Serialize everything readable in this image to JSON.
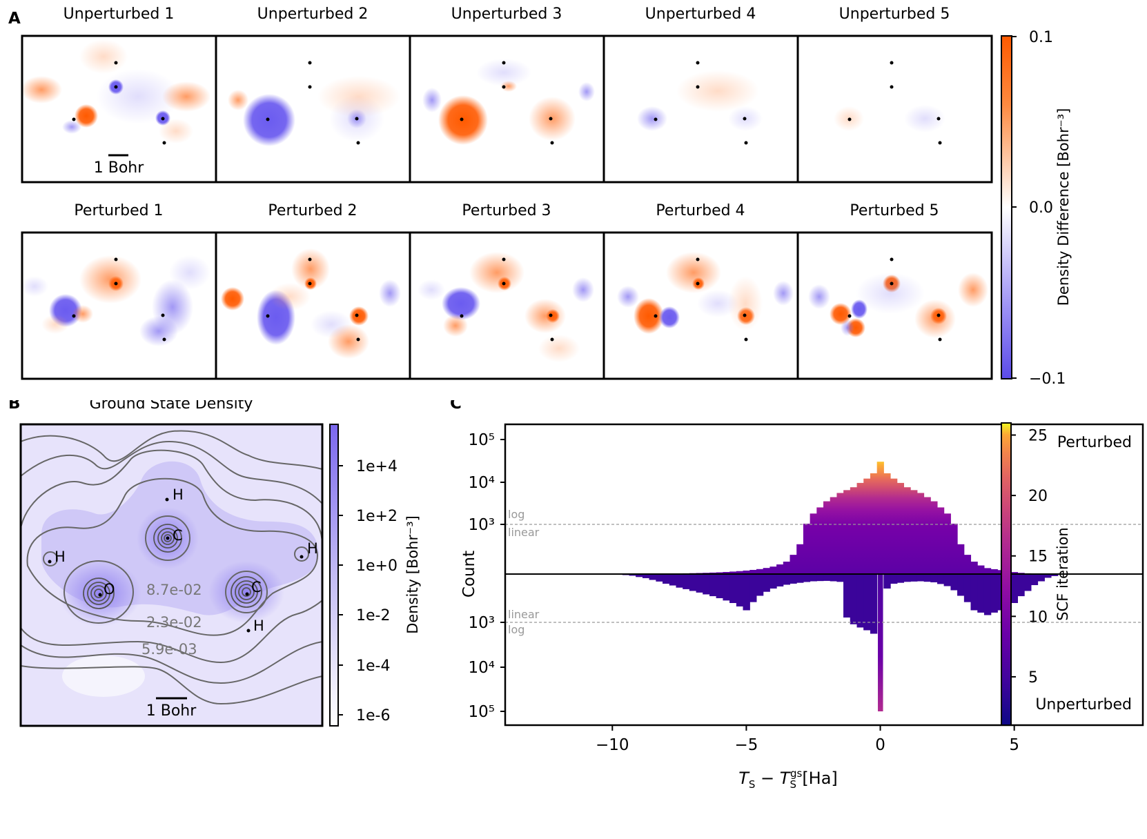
{
  "panel_labels": {
    "a": "A",
    "b": "B",
    "c": "C"
  },
  "panel_a": {
    "unperturbed_titles": [
      "Unperturbed 1",
      "Unperturbed 2",
      "Unperturbed 3",
      "Unperturbed 4",
      "Unperturbed 5"
    ],
    "perturbed_titles": [
      "Perturbed 1",
      "Perturbed 2",
      "Perturbed 3",
      "Perturbed 4",
      "Perturbed 5"
    ],
    "scalebar_label": "1 Bohr",
    "colorbar": {
      "label": "Density Difference [Bohr⁻³]",
      "ticks": [
        "0.1",
        "0.0",
        "−0.1"
      ],
      "min": -0.1,
      "max": 0.1,
      "colors": {
        "positive": "#ff6a1a",
        "negative": "#6b5cf0",
        "zero": "#ffffff"
      }
    }
  },
  "panel_b": {
    "title": "Ground State Density",
    "atoms": [
      {
        "label": "H"
      },
      {
        "label": "C"
      },
      {
        "label": "H"
      },
      {
        "label": "H"
      },
      {
        "label": "O"
      },
      {
        "label": "C"
      },
      {
        "label": "H"
      }
    ],
    "contour_labels": [
      "8.7e-02",
      "2.3e-02",
      "5.9e-03"
    ],
    "scalebar_label": "1 Bohr",
    "colorbar": {
      "label": "Density [Bohr⁻³]",
      "ticks": [
        "1e+4",
        "1e+2",
        "1e+0",
        "1e-2",
        "1e-4",
        "1e-6"
      ]
    }
  },
  "chart_data": {
    "type": "bar",
    "title": "",
    "xlabel": "T_S − T_S^gs [Ha]",
    "ylabel": "Count",
    "xlim": [
      -14,
      9.8
    ],
    "xticks": [
      "−10",
      "−5",
      "0",
      "5"
    ],
    "xtick_values": [
      -10,
      -5,
      0,
      5
    ],
    "ytick_labels_top": [
      "10⁵",
      "10⁴",
      "10³"
    ],
    "ytick_labels_bottom": [
      "10³",
      "10⁴",
      "10⁵"
    ],
    "threshold_count": 1000,
    "scale_labels_top": [
      "log",
      "linear"
    ],
    "scale_labels_bottom": [
      "linear",
      "log"
    ],
    "annotations": {
      "top": "Perturbed",
      "bottom": "Unperturbed"
    },
    "series": [
      {
        "name": "Perturbed",
        "bin_width": 0.25,
        "x": [
          -9.5,
          -9.0,
          -8.5,
          -8.0,
          -7.5,
          -7.0,
          -6.5,
          -6.0,
          -5.5,
          -5.0,
          -4.5,
          -4.0,
          -3.5,
          -3.0,
          -2.5,
          -2.0,
          -1.5,
          -1.0,
          -0.5,
          -0.25,
          0.0,
          0.25,
          0.5,
          1.0,
          1.5,
          2.0,
          2.5,
          3.0,
          3.5,
          4.0,
          4.5,
          5.0,
          5.5,
          6.0,
          6.5
        ],
        "counts": [
          2,
          3,
          5,
          8,
          12,
          18,
          25,
          35,
          50,
          70,
          100,
          150,
          250,
          600,
          1800,
          3500,
          5500,
          7500,
          12000,
          16000,
          30000,
          16000,
          12000,
          7500,
          5500,
          3500,
          1800,
          600,
          250,
          120,
          80,
          40,
          15,
          6,
          2
        ]
      },
      {
        "name": "Unperturbed",
        "bin_width": 0.25,
        "x": [
          -9.5,
          -9.0,
          -8.5,
          -8.0,
          -7.5,
          -7.0,
          -6.5,
          -6.0,
          -5.5,
          -5.0,
          -4.5,
          -4.0,
          -3.5,
          -3.0,
          -2.5,
          -2.0,
          -1.5,
          -1.25,
          -1.0,
          -0.75,
          -0.5,
          -0.25,
          0.0,
          0.25,
          0.5,
          0.75,
          1.0,
          1.5,
          2.0,
          2.5,
          3.0,
          3.5,
          4.0,
          4.5,
          5.0,
          5.5,
          6.0,
          6.5
        ],
        "counts": [
          20,
          60,
          120,
          200,
          280,
          350,
          420,
          500,
          600,
          750,
          450,
          300,
          220,
          180,
          150,
          140,
          160,
          900,
          1100,
          1300,
          1500,
          1800,
          100000,
          300,
          200,
          180,
          160,
          150,
          170,
          250,
          450,
          750,
          850,
          750,
          600,
          350,
          150,
          40
        ]
      }
    ],
    "colorbar": {
      "label": "SCF iteration",
      "ticks": [
        5,
        10,
        15,
        20,
        25
      ],
      "range": [
        1,
        26
      ]
    }
  }
}
